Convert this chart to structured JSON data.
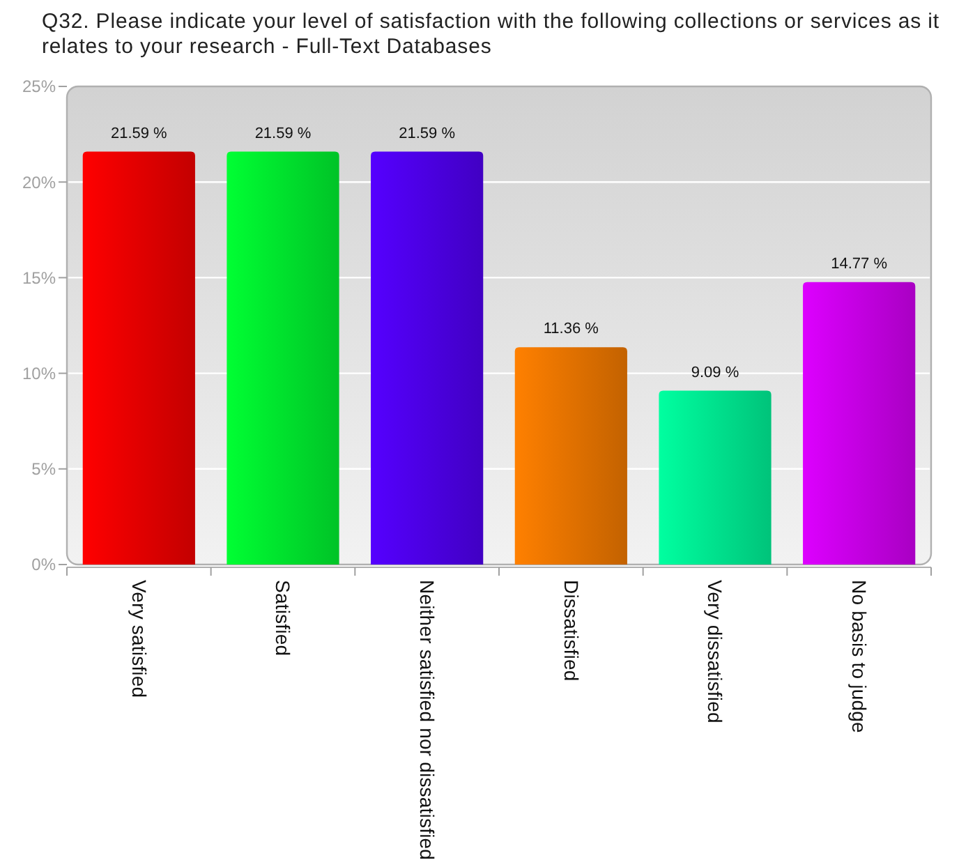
{
  "chart_data": {
    "type": "bar",
    "title": "Q32. Please indicate your level of satisfaction with the following collections or services as it relates to your research - Full-Text Databases",
    "categories": [
      "Very satisfied",
      "Satisfied",
      "Neither satisfied nor dissatisfied",
      "Dissatisfied",
      "Very dissatisfied",
      "No basis to judge"
    ],
    "values": [
      21.59,
      21.59,
      21.59,
      11.36,
      9.09,
      14.77
    ],
    "colors": [
      "#ff0000",
      "#00ff33",
      "#5500ff",
      "#ff8000",
      "#00ffa0",
      "#dd00ff"
    ],
    "value_labels": [
      "21.59 %",
      "21.59 %",
      "21.59 %",
      "11.36 %",
      "9.09 %",
      "14.77 %"
    ],
    "ylim": [
      0,
      25
    ],
    "yticks": [
      {
        "value": 0,
        "label": "0%"
      },
      {
        "value": 5,
        "label": "5%"
      },
      {
        "value": 10,
        "label": "10%"
      },
      {
        "value": 15,
        "label": "15%"
      },
      {
        "value": 20,
        "label": "20%"
      },
      {
        "value": 25,
        "label": "25%"
      }
    ],
    "grid": "y"
  }
}
